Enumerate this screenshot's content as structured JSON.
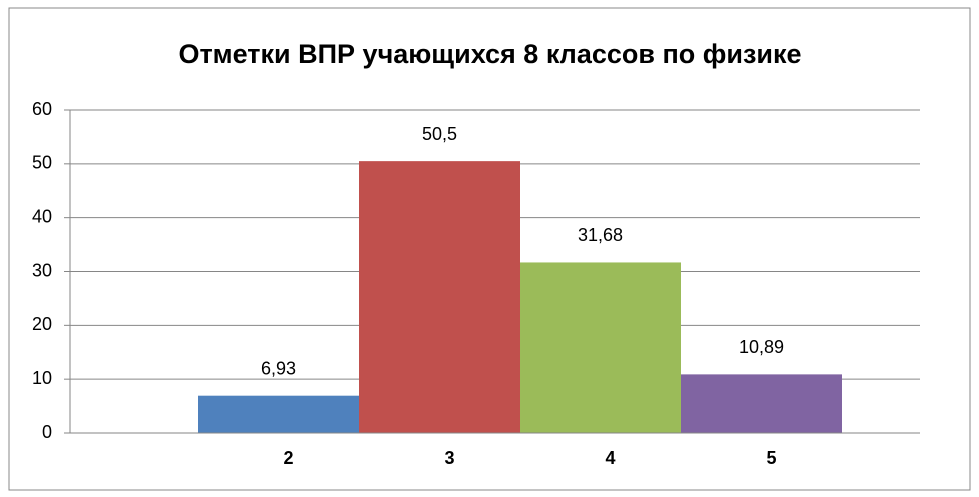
{
  "chart_data": {
    "type": "bar",
    "title": "Отметки ВПР учающихся 8 классов по физике",
    "categories": [
      "2",
      "3",
      "4",
      "5"
    ],
    "values": [
      6.93,
      50.5,
      31.68,
      10.89
    ],
    "value_labels": [
      "6,93",
      "50,5",
      "31,68",
      "10,89"
    ],
    "colors": [
      "#4f81bd",
      "#c0504d",
      "#9bbb59",
      "#8064a2"
    ],
    "ylim": [
      0,
      60
    ],
    "yticks": [
      0,
      10,
      20,
      30,
      40,
      50,
      60
    ],
    "grid": true
  }
}
